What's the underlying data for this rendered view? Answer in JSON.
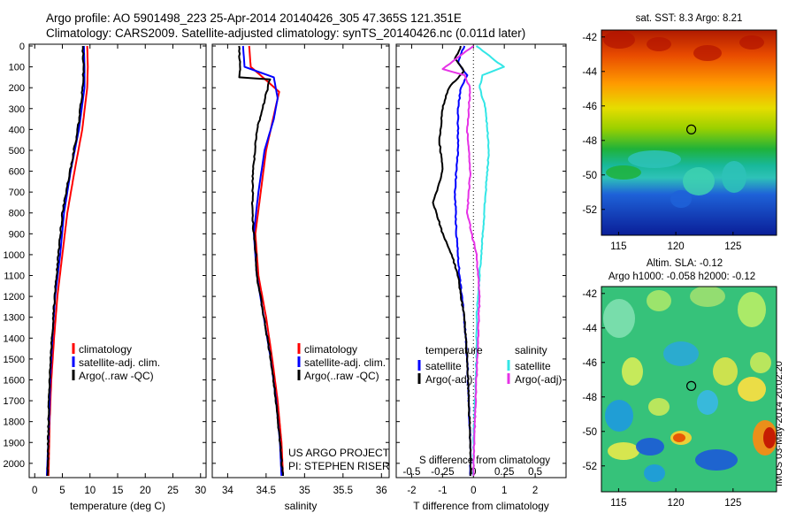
{
  "header": {
    "line1": "Argo profile: AO 5901498_223 25-Apr-2014 20140426_305 47.365S 121.351E",
    "line2": "Climatology: CARS2009. Satellite-adjusted climatology: synTS_20140426.nc (0.011d later)"
  },
  "stamp": "IMOS 03-May-2014 20:02:20",
  "colors": {
    "climatology": "#ff0000",
    "satellite": "#0000ff",
    "argo": "#000000",
    "sal_satellite": "#33e6e6",
    "sal_argo": "#e633e6"
  },
  "depth_axis": {
    "ticks": [
      0,
      100,
      200,
      300,
      400,
      500,
      600,
      700,
      800,
      900,
      1000,
      1100,
      1200,
      1300,
      1400,
      1500,
      1600,
      1700,
      1800,
      1900,
      2000
    ],
    "ylim": [
      0,
      2060
    ]
  },
  "chart_data": [
    {
      "id": "temperature",
      "type": "line",
      "xlabel": "temperature (deg C)",
      "xlim": [
        -1,
        31
      ],
      "xticks": [
        0,
        5,
        10,
        15,
        20,
        25,
        30
      ],
      "legend": [
        "climatology",
        "satellite-adj. clim.",
        "Argo(..raw -QC)"
      ],
      "series": [
        {
          "name": "climatology",
          "color": "#ff0000",
          "points": [
            [
              9.5,
              0
            ],
            [
              9.6,
              100
            ],
            [
              9.5,
              200
            ],
            [
              8.6,
              400
            ],
            [
              7.2,
              600
            ],
            [
              5.9,
              800
            ],
            [
              5.0,
              1000
            ],
            [
              4.1,
              1200
            ],
            [
              3.5,
              1400
            ],
            [
              3.0,
              1600
            ],
            [
              2.7,
              1800
            ],
            [
              2.5,
              2060
            ]
          ]
        },
        {
          "name": "satellite-adj. clim.",
          "color": "#0000ff",
          "points": [
            [
              8.9,
              0
            ],
            [
              9.0,
              100
            ],
            [
              9.0,
              200
            ],
            [
              8.0,
              400
            ],
            [
              6.5,
              600
            ],
            [
              5.3,
              800
            ],
            [
              4.6,
              1000
            ],
            [
              3.7,
              1200
            ],
            [
              3.2,
              1400
            ],
            [
              2.8,
              1600
            ],
            [
              2.6,
              1800
            ],
            [
              2.2,
              2060
            ]
          ]
        },
        {
          "name": "Argo(..raw -QC)",
          "color": "#000000",
          "points": [
            [
              8.7,
              0
            ],
            [
              8.8,
              100
            ],
            [
              8.7,
              200
            ],
            [
              7.8,
              400
            ],
            [
              6.4,
              600
            ],
            [
              5.0,
              800
            ],
            [
              4.3,
              1000
            ],
            [
              3.6,
              1200
            ],
            [
              3.1,
              1400
            ],
            [
              2.7,
              1600
            ],
            [
              2.5,
              1800
            ],
            [
              2.3,
              2060
            ]
          ]
        }
      ]
    },
    {
      "id": "salinity",
      "type": "line",
      "xlabel": "salinity",
      "xlim": [
        33.8,
        36.1
      ],
      "xticks": [
        34,
        34.5,
        35,
        35.5,
        36
      ],
      "legend": [
        "climatology",
        "satellite-adj. clim.",
        "Argo(..raw -QC)"
      ],
      "annotation": [
        "US ARGO PROJECT",
        "PI: STEPHEN RISER"
      ],
      "series": [
        {
          "name": "climatology",
          "color": "#ff0000",
          "points": [
            [
              34.28,
              0
            ],
            [
              34.3,
              100
            ],
            [
              34.52,
              170
            ],
            [
              34.67,
              220
            ],
            [
              34.62,
              300
            ],
            [
              34.5,
              500
            ],
            [
              34.43,
              700
            ],
            [
              34.36,
              900
            ],
            [
              34.4,
              1100
            ],
            [
              34.5,
              1300
            ],
            [
              34.58,
              1500
            ],
            [
              34.65,
              1700
            ],
            [
              34.7,
              1900
            ],
            [
              34.72,
              2060
            ]
          ]
        },
        {
          "name": "satellite-adj. clim.",
          "color": "#0000ff",
          "points": [
            [
              34.2,
              0
            ],
            [
              34.22,
              100
            ],
            [
              34.6,
              150
            ],
            [
              34.65,
              250
            ],
            [
              34.6,
              350
            ],
            [
              34.48,
              500
            ],
            [
              34.4,
              700
            ],
            [
              34.34,
              900
            ],
            [
              34.38,
              1100
            ],
            [
              34.47,
              1300
            ],
            [
              34.56,
              1500
            ],
            [
              34.63,
              1700
            ],
            [
              34.68,
              1900
            ],
            [
              34.7,
              2060
            ]
          ]
        },
        {
          "name": "Argo(..raw -QC)",
          "color": "#000000",
          "points": [
            [
              34.15,
              0
            ],
            [
              34.16,
              100
            ],
            [
              34.15,
              150
            ],
            [
              34.55,
              160
            ],
            [
              34.48,
              260
            ],
            [
              34.38,
              400
            ],
            [
              34.33,
              600
            ],
            [
              34.32,
              800
            ],
            [
              34.34,
              900
            ],
            [
              34.37,
              1000
            ],
            [
              34.38,
              1100
            ],
            [
              34.47,
              1300
            ],
            [
              34.56,
              1500
            ],
            [
              34.63,
              1700
            ],
            [
              34.68,
              1900
            ],
            [
              34.72,
              2060
            ]
          ]
        }
      ]
    },
    {
      "id": "difference",
      "type": "line",
      "xlabel": "T difference from climatology",
      "toplabel": "S difference from climatology",
      "xlim": [
        -2.5,
        3.0
      ],
      "xticks": [
        -2,
        -1,
        0,
        1,
        2
      ],
      "s_ticks": [
        "-0.5",
        "-0.25",
        "0",
        "0.25",
        "0.5"
      ],
      "s_tick_pos": [
        -2,
        -1,
        0,
        1,
        2
      ],
      "legend_titles": [
        "temperature",
        "salinity"
      ],
      "legend": [
        "satellite",
        "Argo(-adj)",
        "satellite",
        "Argo(-adj)"
      ],
      "series": [
        {
          "name": "satellite",
          "group": "temperature",
          "color": "#0000ff",
          "points": [
            [
              -0.3,
              0
            ],
            [
              -0.5,
              80
            ],
            [
              -0.2,
              140
            ],
            [
              -0.4,
              200
            ],
            [
              -0.5,
              300
            ],
            [
              -0.5,
              500
            ],
            [
              -0.6,
              700
            ],
            [
              -0.55,
              900
            ],
            [
              -0.45,
              1100
            ],
            [
              -0.3,
              1300
            ],
            [
              -0.2,
              1500
            ],
            [
              -0.15,
              1700
            ],
            [
              -0.1,
              1900
            ],
            [
              -0.1,
              2060
            ]
          ]
        },
        {
          "name": "Argo(-adj)",
          "group": "temperature",
          "color": "#000000",
          "points": [
            [
              -0.4,
              0
            ],
            [
              -0.6,
              60
            ],
            [
              -0.3,
              120
            ],
            [
              -0.8,
              200
            ],
            [
              -1.0,
              300
            ],
            [
              -1.1,
              450
            ],
            [
              -1.0,
              600
            ],
            [
              -1.3,
              750
            ],
            [
              -1.0,
              900
            ],
            [
              -0.7,
              1000
            ],
            [
              -0.5,
              1100
            ],
            [
              -0.3,
              1300
            ],
            [
              -0.2,
              1500
            ],
            [
              -0.15,
              1700
            ],
            [
              -0.1,
              1900
            ],
            [
              -0.1,
              2060
            ]
          ]
        },
        {
          "name": "satellite",
          "group": "salinity",
          "color": "#33e6e6",
          "points": [
            [
              0.1,
              0
            ],
            [
              0.8,
              80
            ],
            [
              1.0,
              100
            ],
            [
              0.3,
              140
            ],
            [
              0.2,
              200
            ],
            [
              0.4,
              300
            ],
            [
              0.5,
              500
            ],
            [
              0.4,
              700
            ],
            [
              0.3,
              900
            ],
            [
              0.2,
              1100
            ],
            [
              0.1,
              1300
            ],
            [
              0.1,
              1500
            ],
            [
              0.05,
              1700
            ],
            [
              0.0,
              1900
            ],
            [
              0.0,
              2060
            ]
          ]
        },
        {
          "name": "Argo(-adj)",
          "group": "salinity",
          "color": "#e633e6",
          "points": [
            [
              0.0,
              0
            ],
            [
              -1.0,
              110
            ],
            [
              -0.3,
              140
            ],
            [
              -0.1,
              200
            ],
            [
              -0.2,
              400
            ],
            [
              -0.1,
              600
            ],
            [
              -0.2,
              800
            ],
            [
              0.1,
              1000
            ],
            [
              0.2,
              1200
            ],
            [
              0.15,
              1400
            ],
            [
              0.1,
              1600
            ],
            [
              0.05,
              1800
            ],
            [
              0.0,
              2060
            ]
          ]
        }
      ]
    }
  ],
  "maps": [
    {
      "id": "sst",
      "title": "sat. SST: 8.3 Argo: 8.21",
      "xticks": [
        "115",
        "120",
        "125"
      ],
      "xtick_values": [
        115,
        120,
        125
      ],
      "yticks": [
        "-42",
        "-44",
        "-46",
        "-48",
        "-50",
        "-52"
      ],
      "ytick_values": [
        -42,
        -44,
        -46,
        -48,
        -50,
        -52
      ],
      "xlim": [
        113.5,
        128.8
      ],
      "ylim": [
        -53.5,
        -41.6
      ],
      "marker": [
        121.351,
        -47.365
      ]
    },
    {
      "id": "sla",
      "title1": "Altim. SLA: -0.12",
      "title2": "Argo h1000: -0.058 h2000: -0.12",
      "xticks": [
        "115",
        "120",
        "125"
      ],
      "xtick_values": [
        115,
        120,
        125
      ],
      "yticks": [
        "-42",
        "-44",
        "-46",
        "-48",
        "-50",
        "-52"
      ],
      "ytick_values": [
        -42,
        -44,
        -46,
        -48,
        -50,
        -52
      ],
      "xlim": [
        113.5,
        128.8
      ],
      "ylim": [
        -53.5,
        -41.6
      ],
      "marker": [
        121.351,
        -47.365
      ]
    }
  ]
}
